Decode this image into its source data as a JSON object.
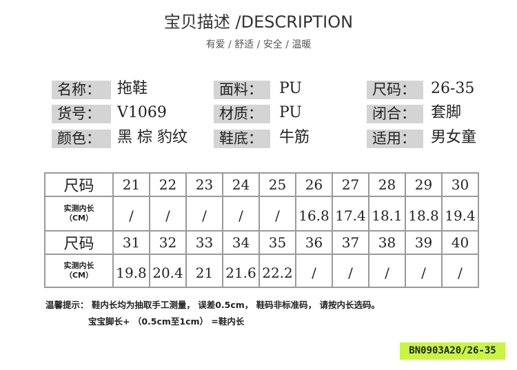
{
  "header": {
    "title": "宝贝描述 /DESCRIPTION",
    "subtitle": "有爱 / 舒适 / 安全 / 温暖"
  },
  "specs": [
    {
      "label": "名称：",
      "value": "拖鞋"
    },
    {
      "label": "货号：",
      "value": "V1069"
    },
    {
      "label": "颜色：",
      "value": "黑 棕 豹纹"
    },
    {
      "label": "面料：",
      "value": "PU"
    },
    {
      "label": "材质：",
      "value": "PU"
    },
    {
      "label": "鞋底：",
      "value": "牛筋"
    },
    {
      "label": "尺码：",
      "value": "26-35"
    },
    {
      "label": "闭合：",
      "value": "套脚"
    },
    {
      "label": "适用：",
      "value": "男女童"
    }
  ],
  "size_table": {
    "size_header": "尺码",
    "length_header": "实测内长",
    "length_unit": "（CM）",
    "rows": [
      {
        "sizes": [
          "21",
          "22",
          "23",
          "24",
          "25",
          "26",
          "27",
          "28",
          "29",
          "30"
        ],
        "lengths": [
          "/",
          "/",
          "/",
          "/",
          "/",
          "16.8",
          "17.4",
          "18.1",
          "18.8",
          "19.4"
        ]
      },
      {
        "sizes": [
          "31",
          "32",
          "33",
          "34",
          "35",
          "36",
          "37",
          "38",
          "39",
          "40"
        ],
        "lengths": [
          "19.8",
          "20.4",
          "21",
          "21.6",
          "22.2",
          "/",
          "/",
          "/",
          "/",
          "/"
        ]
      }
    ]
  },
  "notes": {
    "line1": "温馨提示： 鞋内长均为抽取手工测量， 误差0.5cm， 鞋码非标准码， 请按内长选码。",
    "line2": "宝宝脚长+ （0.5cm至1cm） =鞋内长"
  },
  "badge": {
    "code": "BN0903A20/26-35",
    "color": "#c8f541"
  }
}
